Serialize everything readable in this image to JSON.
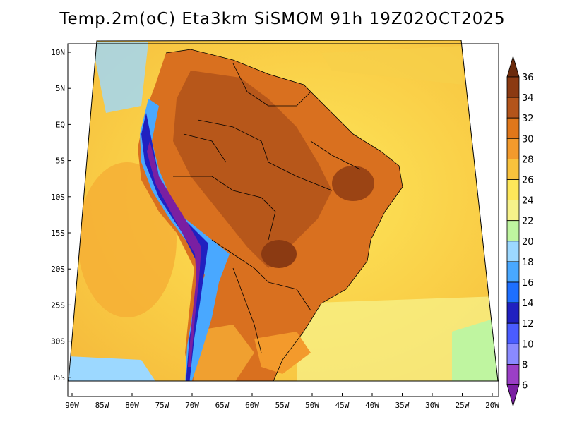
{
  "title": "Temp.2m(oC) Eta3km SiSMOM 91h 19Z02OCT2025",
  "axes": {
    "lat_labels": [
      "10N",
      "5N",
      "EQ",
      "5S",
      "10S",
      "15S",
      "20S",
      "25S",
      "30S",
      "35S"
    ],
    "lon_labels": [
      "90W",
      "85W",
      "80W",
      "75W",
      "70W",
      "65W",
      "60W",
      "55W",
      "50W",
      "45W",
      "40W",
      "35W",
      "30W",
      "25W",
      "20W"
    ]
  },
  "colorbar": {
    "levels": [
      "6",
      "8",
      "10",
      "12",
      "14",
      "16",
      "18",
      "20",
      "22",
      "24",
      "26",
      "28",
      "30",
      "32",
      "34",
      "36"
    ],
    "colors": [
      "#7a1fa2",
      "#9b3fc6",
      "#8a8aff",
      "#4a5cff",
      "#2020c0",
      "#1e6fff",
      "#49a8ff",
      "#9cd8ff",
      "#bff5a0",
      "#f7f28a",
      "#fde75a",
      "#f9c23c",
      "#f39a2c",
      "#e0771a",
      "#b3541a",
      "#8b3a12",
      "#6b2a0c"
    ]
  },
  "map": {
    "ocean_colors": {
      "warm": "#fbd64a",
      "mid": "#f5bc3a",
      "cool": "#f7f28a",
      "cold": "#9cd8ff"
    },
    "land_colors": {
      "hot": "#b3541a",
      "warm": "#d9701f",
      "andes_cold": "#4a5cff",
      "andes_coldest": "#7a1fa2"
    }
  },
  "icons": {
    "colorbar_up": "triangle-up-icon",
    "colorbar_down": "triangle-down-icon"
  }
}
